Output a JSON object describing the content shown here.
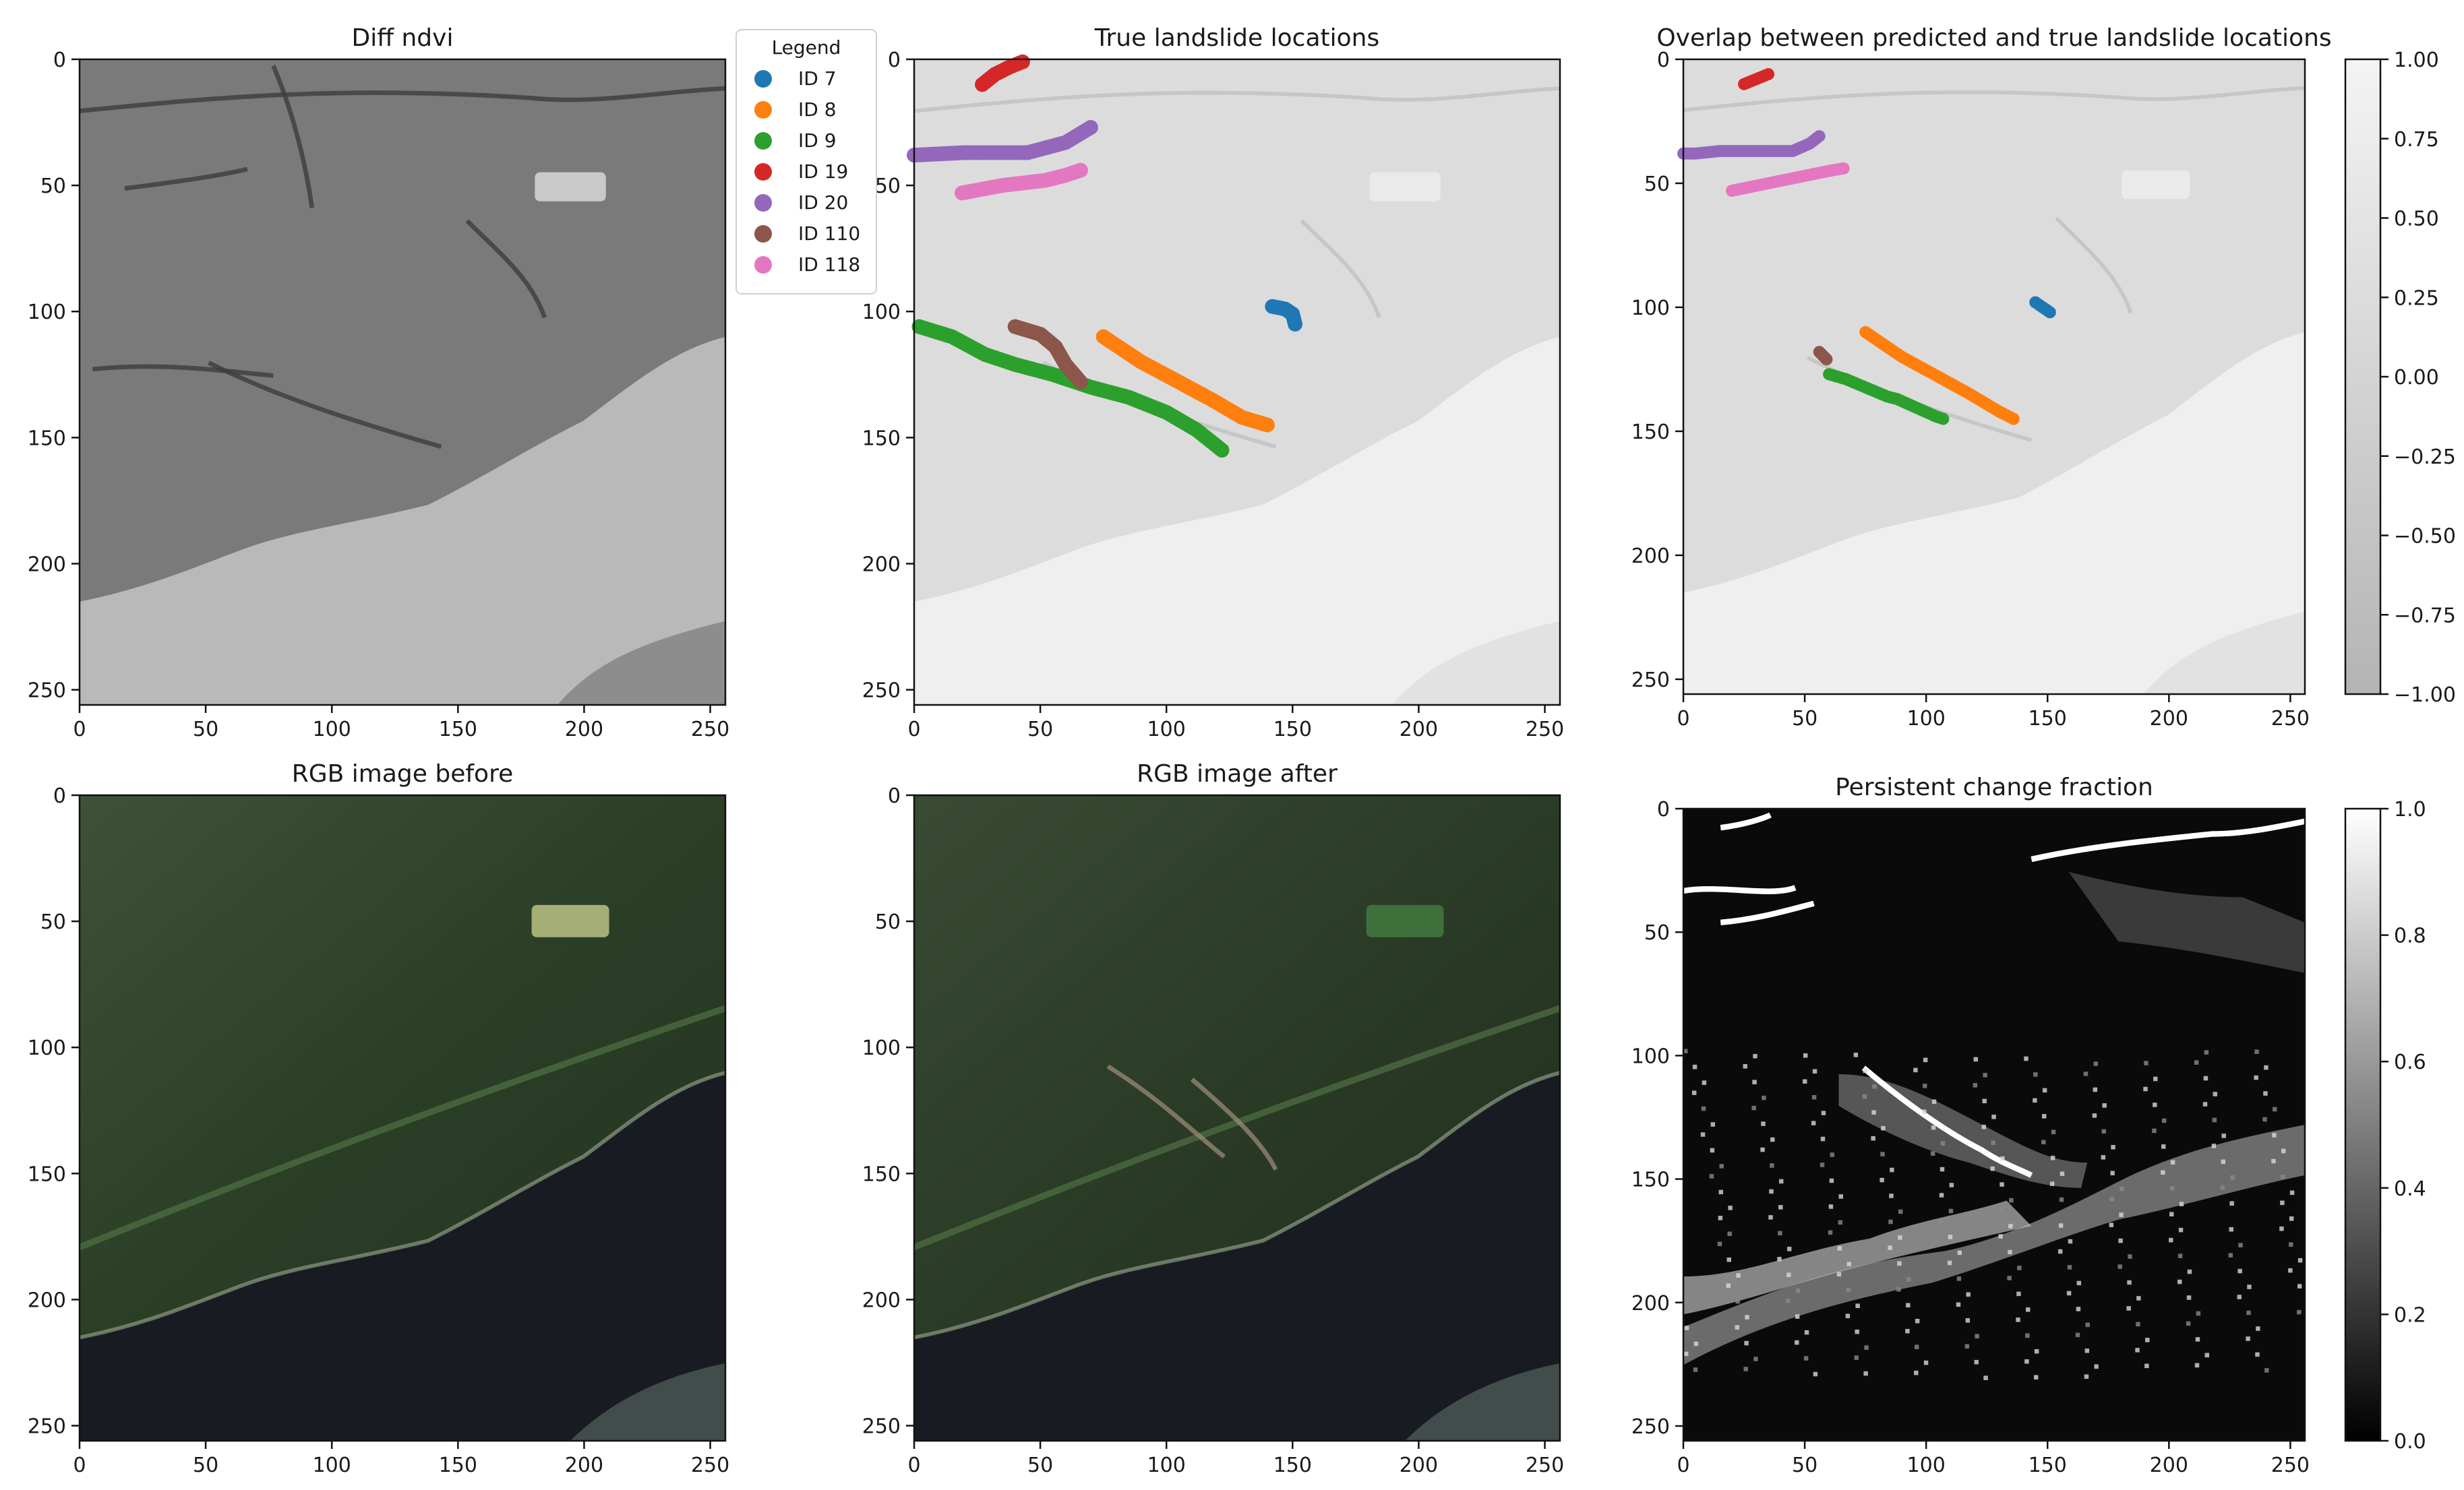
{
  "chart_data": [
    {
      "type": "heatmap",
      "title": "Diff ndvi",
      "x_ticks": [
        0,
        50,
        100,
        150,
        200,
        250
      ],
      "y_ticks": [
        0,
        50,
        100,
        150,
        200,
        250
      ],
      "xlim": [
        0,
        256
      ],
      "ylim": [
        256,
        0
      ],
      "colormap": "gray"
    },
    {
      "type": "scatter",
      "title": "True landslide locations",
      "x_ticks": [
        0,
        50,
        100,
        150,
        200,
        250
      ],
      "y_ticks": [
        0,
        50,
        100,
        150,
        200,
        250
      ],
      "xlim": [
        0,
        256
      ],
      "ylim": [
        256,
        0
      ],
      "legend": {
        "title": "Legend",
        "placement": "between first and second panel, top",
        "entries": [
          {
            "label": "ID 7",
            "color": "#1f77b4"
          },
          {
            "label": "ID 8",
            "color": "#ff7f0e"
          },
          {
            "label": "ID 9",
            "color": "#2ca02c"
          },
          {
            "label": "ID 19",
            "color": "#d62728"
          },
          {
            "label": "ID 20",
            "color": "#9467bd"
          },
          {
            "label": "ID 110",
            "color": "#8c564b"
          },
          {
            "label": "ID 118",
            "color": "#e377c2"
          }
        ]
      },
      "series": [
        {
          "id": 7,
          "color": "#1f77b4",
          "points": [
            [
              142,
              98
            ],
            [
              147,
              99
            ],
            [
              150,
              101
            ],
            [
              151,
              105
            ]
          ]
        },
        {
          "id": 8,
          "color": "#ff7f0e",
          "points": [
            [
              75,
              110
            ],
            [
              90,
              120
            ],
            [
              105,
              128
            ],
            [
              118,
              135
            ],
            [
              130,
              142
            ],
            [
              140,
              145
            ]
          ]
        },
        {
          "id": 9,
          "color": "#2ca02c",
          "points": [
            [
              2,
              106
            ],
            [
              15,
              110
            ],
            [
              28,
              117
            ],
            [
              40,
              121
            ],
            [
              55,
              125
            ],
            [
              70,
              130
            ],
            [
              85,
              134
            ],
            [
              100,
              140
            ],
            [
              112,
              147
            ],
            [
              122,
              155
            ]
          ]
        },
        {
          "id": 19,
          "color": "#d62728",
          "points": [
            [
              27,
              10
            ],
            [
              32,
              6
            ],
            [
              38,
              3
            ],
            [
              43,
              1
            ]
          ]
        },
        {
          "id": 20,
          "color": "#9467bd",
          "points": [
            [
              0,
              38
            ],
            [
              20,
              37
            ],
            [
              45,
              37
            ],
            [
              60,
              33
            ],
            [
              70,
              27
            ]
          ]
        },
        {
          "id": 110,
          "color": "#8c564b",
          "points": [
            [
              40,
              106
            ],
            [
              50,
              109
            ],
            [
              56,
              114
            ],
            [
              60,
              121
            ],
            [
              66,
              128
            ]
          ]
        },
        {
          "id": 118,
          "color": "#e377c2",
          "points": [
            [
              19,
              53
            ],
            [
              35,
              50
            ],
            [
              52,
              48
            ],
            [
              60,
              46
            ],
            [
              66,
              44
            ]
          ]
        }
      ]
    },
    {
      "type": "heatmap",
      "title": "Overlap between predicted and true landslide locations",
      "x_ticks": [
        0,
        50,
        100,
        150,
        200,
        250
      ],
      "y_ticks": [
        0,
        50,
        100,
        150,
        200,
        250
      ],
      "xlim": [
        0,
        256
      ],
      "ylim": [
        256,
        0
      ],
      "colorbar": {
        "min": -1.0,
        "max": 1.0,
        "ticks": [
          "1.00",
          "0.75",
          "0.50",
          "0.25",
          "0.00",
          "−0.25",
          "−0.50",
          "−0.75",
          "−1.00"
        ]
      },
      "series": [
        {
          "id": 7,
          "color": "#1f77b4",
          "points": [
            [
              145,
              98
            ],
            [
              151,
              102
            ]
          ]
        },
        {
          "id": 8,
          "color": "#ff7f0e",
          "points": [
            [
              75,
              110
            ],
            [
              90,
              120
            ],
            [
              105,
              128
            ],
            [
              118,
              135
            ],
            [
              130,
              142
            ],
            [
              136,
              145
            ]
          ]
        },
        {
          "id": 9,
          "color": "#2ca02c",
          "points": [
            [
              60,
              127
            ],
            [
              67,
              129
            ],
            [
              84,
              136
            ],
            [
              88,
              137
            ],
            [
              104,
              144
            ],
            [
              107,
              145
            ]
          ]
        },
        {
          "id": 19,
          "color": "#d62728",
          "points": [
            [
              25,
              10
            ],
            [
              30,
              8
            ],
            [
              35,
              6
            ]
          ]
        },
        {
          "id": 20,
          "color": "#9467bd",
          "points": [
            [
              0,
              38
            ],
            [
              5,
              38
            ],
            [
              15,
              37
            ],
            [
              22,
              37
            ],
            [
              35,
              37
            ],
            [
              45,
              37
            ],
            [
              52,
              34
            ],
            [
              56,
              31
            ]
          ]
        },
        {
          "id": 110,
          "color": "#8c564b",
          "points": [
            [
              56,
              118
            ],
            [
              59,
              121
            ]
          ]
        },
        {
          "id": 118,
          "color": "#e377c2",
          "points": [
            [
              20,
              53
            ],
            [
              35,
              50
            ],
            [
              50,
              47
            ],
            [
              60,
              45
            ],
            [
              66,
              44
            ]
          ]
        }
      ]
    },
    {
      "type": "heatmap",
      "title": "RGB image before",
      "x_ticks": [
        0,
        50,
        100,
        150,
        200,
        250
      ],
      "y_ticks": [
        0,
        50,
        100,
        150,
        200,
        250
      ],
      "xlim": [
        0,
        256
      ],
      "ylim": [
        256,
        0
      ]
    },
    {
      "type": "heatmap",
      "title": "RGB image after",
      "x_ticks": [
        0,
        50,
        100,
        150,
        200,
        250
      ],
      "y_ticks": [
        0,
        50,
        100,
        150,
        200,
        250
      ],
      "xlim": [
        0,
        256
      ],
      "ylim": [
        256,
        0
      ]
    },
    {
      "type": "heatmap",
      "title": "Persistent change fraction",
      "x_ticks": [
        0,
        50,
        100,
        150,
        200,
        250
      ],
      "y_ticks": [
        0,
        50,
        100,
        150,
        200,
        250
      ],
      "xlim": [
        0,
        256
      ],
      "ylim": [
        256,
        0
      ],
      "colormap": "gray",
      "colorbar": {
        "min": 0.0,
        "max": 1.0,
        "ticks": [
          "1.0",
          "0.8",
          "0.6",
          "0.4",
          "0.2",
          "0.0"
        ]
      }
    }
  ]
}
